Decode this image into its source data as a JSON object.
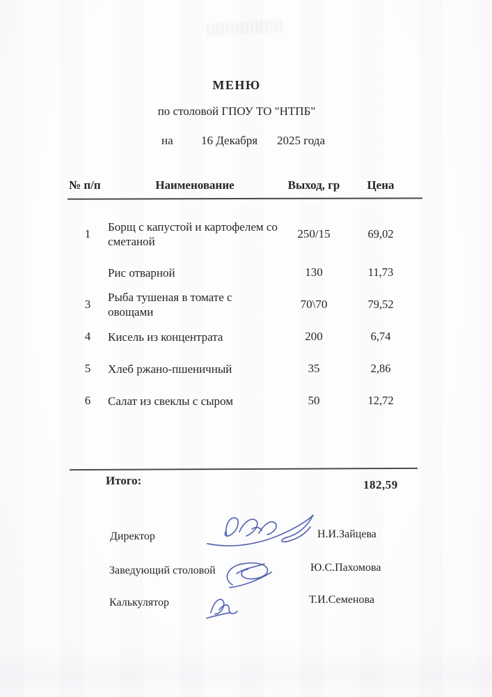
{
  "document": {
    "title": "МЕНЮ",
    "subtitle": "по столовой ГПОУ ТО \"НТПБ\"",
    "date_line": {
      "prefix": "на",
      "date": "16 Декабря",
      "year": "2025 года"
    },
    "table": {
      "columns": [
        "№ п/п",
        "Наименование",
        "Выход, гр",
        "Цена"
      ],
      "rows": [
        {
          "num": "1",
          "name": "Борщ с капустой и картофелем со сметаной",
          "out": "250/15",
          "price": "69,02"
        },
        {
          "num": "",
          "name": "Рис отварной",
          "out": "130",
          "price": "11,73"
        },
        {
          "num": "3",
          "name": "Рыба тушеная в томате с овощами",
          "out": "70\\70",
          "price": "79,52"
        },
        {
          "num": "4",
          "name": "Кисель из концентрата",
          "out": "200",
          "price": "6,74"
        },
        {
          "num": "5",
          "name": "Хлеб ржано-пшеничный",
          "out": "35",
          "price": "2,86"
        },
        {
          "num": "6",
          "name": "Салат из свеклы с сыром",
          "out": "50",
          "price": "12,72"
        }
      ],
      "total_label": "Итого:",
      "total_value": "182,59"
    },
    "signatures": [
      {
        "role": "Директор",
        "name": "Н.И.Зайцева"
      },
      {
        "role": "Заведующий столовой",
        "name": "Ю.С.Пахомова"
      },
      {
        "role": "Калькулятор",
        "name": "Т.И.Семенова"
      }
    ],
    "ink_color": "#4253a8"
  }
}
